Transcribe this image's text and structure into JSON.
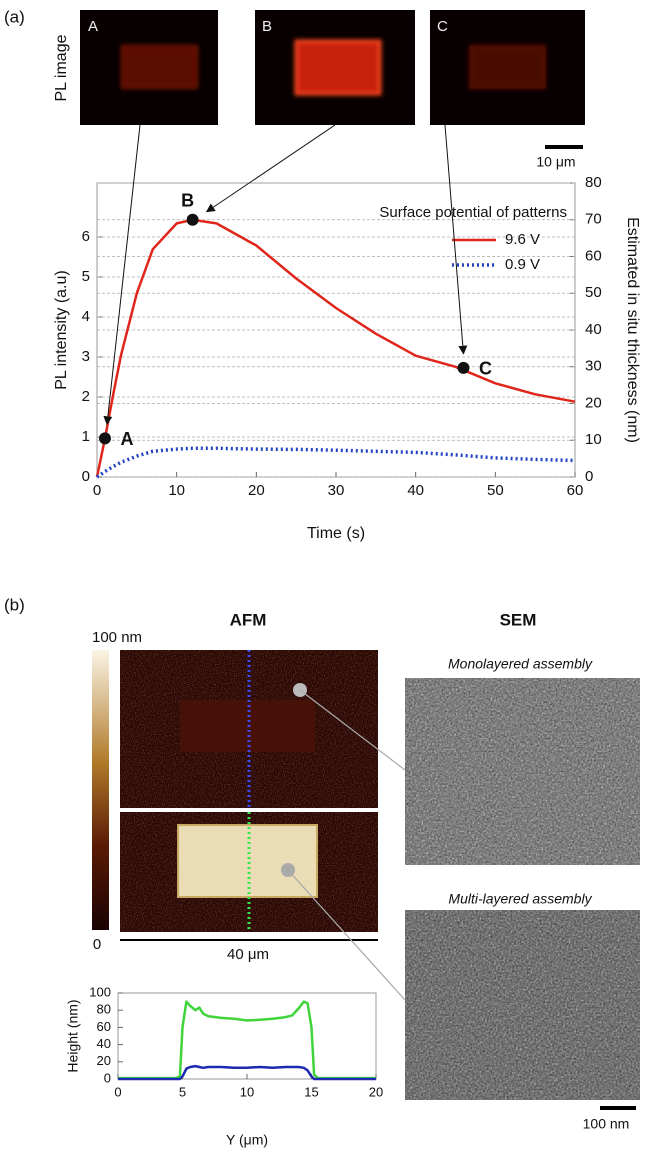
{
  "figure": {
    "panel_a": "(a)",
    "pl_image_label": "PL image",
    "pl_images": [
      "A",
      "B",
      "C"
    ],
    "pl_scale": "10 μm",
    "panel_b": "(b)",
    "afm_title": "AFM",
    "sem_title": "SEM",
    "colorbar_max": "100 nm",
    "colorbar_min": "0",
    "afm_scale": "40 μm",
    "sem_captions": [
      "Monolayered assembly",
      "Multi-layered assembly"
    ],
    "sem_scale": "100 nm"
  },
  "chart_data": [
    {
      "type": "line",
      "xlabel": "Time (s)",
      "ylabel": "PL intensity (a.u)",
      "y2label": "Estimated in situ thickness (nm)",
      "x": [
        0,
        1,
        2,
        3,
        5,
        7,
        10,
        12,
        15,
        20,
        25,
        30,
        35,
        40,
        45,
        50,
        55,
        60
      ],
      "xlim": [
        0,
        60
      ],
      "xticks": [
        0,
        10,
        20,
        30,
        40,
        50,
        60
      ],
      "ylim": [
        0,
        7.35
      ],
      "yticks": [
        0,
        1,
        2,
        3,
        4,
        5,
        6
      ],
      "y2lim": [
        0,
        80
      ],
      "y2ticks": [
        0,
        10,
        20,
        30,
        40,
        50,
        60,
        70,
        80
      ],
      "grid": true,
      "legend_title": "Surface potential of patterns",
      "series": [
        {
          "name": "9.6 V",
          "color": "#e0251b",
          "dash": "solid",
          "axis": "y2",
          "values": [
            0,
            10.5,
            22,
            33,
            50,
            62,
            69,
            70,
            69,
            63,
            54,
            46,
            39,
            33,
            30,
            25.5,
            22.5,
            20.5
          ]
        },
        {
          "name": "0.9 V",
          "color": "#2343c4",
          "dash": "dotted",
          "axis": "y2",
          "values": [
            0,
            1.5,
            2.8,
            4,
            5.7,
            7,
            7.6,
            7.8,
            7.8,
            7.6,
            7.5,
            7.3,
            7,
            6.7,
            6,
            5.2,
            4.8,
            4.5
          ]
        }
      ],
      "points": [
        {
          "label": "A",
          "x": 1,
          "y": 10.5
        },
        {
          "label": "B",
          "x": 12,
          "y": 70
        },
        {
          "label": "C",
          "x": 46,
          "y": 29.7
        }
      ]
    },
    {
      "type": "line",
      "xlabel": "Y (μm)",
      "ylabel": "Height (nm)",
      "x": [
        0,
        4.5,
        4.8,
        5,
        5.3,
        5.6,
        6,
        6.3,
        6.6,
        7,
        8,
        9,
        10,
        11,
        12,
        13,
        13.5,
        14,
        14.4,
        14.7,
        15,
        15.2,
        15.5,
        17,
        20
      ],
      "xlim": [
        0,
        20
      ],
      "xticks": [
        0,
        5,
        10,
        15,
        20
      ],
      "ylim": [
        0,
        100
      ],
      "yticks": [
        0,
        20,
        40,
        60,
        80,
        100
      ],
      "grid": false,
      "series": [
        {
          "color": "#3fd43a",
          "dash": "solid",
          "values": [
            1,
            1,
            3,
            60,
            90,
            85,
            80,
            83,
            76,
            73,
            71,
            70,
            68,
            69,
            70,
            72,
            74,
            82,
            90,
            88,
            60,
            5,
            1,
            1,
            1
          ]
        },
        {
          "color": "#1c2ab0",
          "dash": "solid",
          "values": [
            0,
            0,
            0,
            3,
            12,
            14,
            15,
            14,
            13,
            14,
            14,
            13,
            13,
            14,
            13,
            14,
            14,
            14,
            13,
            10,
            3,
            0,
            0,
            0,
            0
          ]
        }
      ]
    }
  ]
}
